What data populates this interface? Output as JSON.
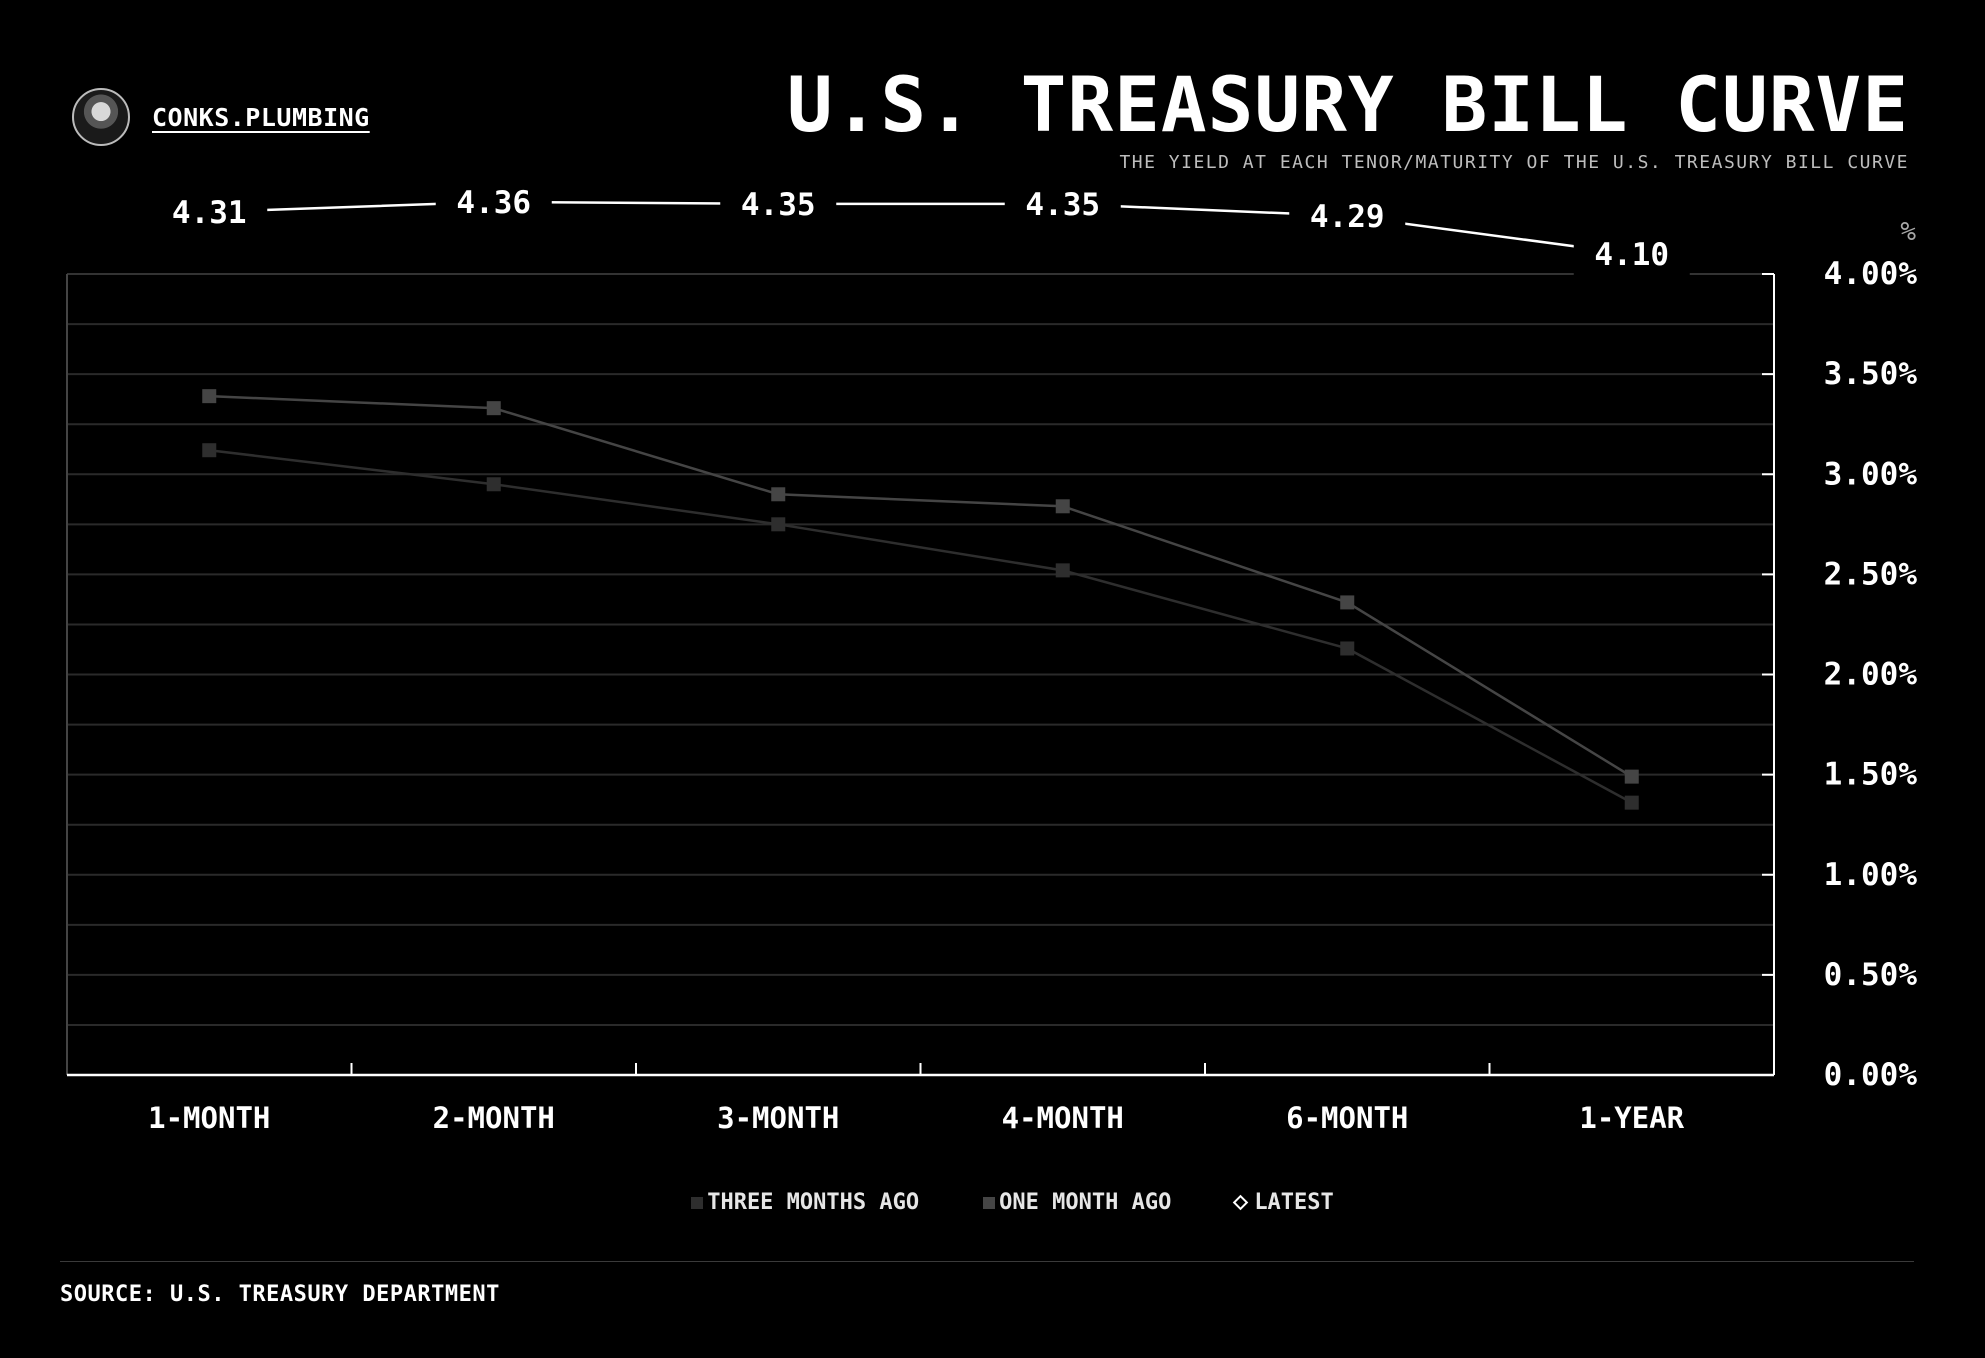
{
  "brand": {
    "name": "CONKS.PLUMBING"
  },
  "header": {
    "title": "U.S. TREASURY BILL CURVE",
    "subtitle": "THE YIELD AT EACH TENOR/MATURITY OF THE U.S. TREASURY BILL CURVE"
  },
  "footer": {
    "source": "SOURCE: U.S. TREASURY DEPARTMENT"
  },
  "colors": {
    "background": "#000000",
    "latest": "#ffffff",
    "three_months_ago": "#2e2e2e",
    "one_month_ago": "#454545",
    "grid": "#2a2a2a"
  },
  "chart_data": {
    "type": "line",
    "title": "U.S. TREASURY BILL CURVE",
    "subtitle": "THE YIELD AT EACH TENOR/MATURITY OF THE U.S. TREASURY BILL CURVE",
    "xlabel": "",
    "ylabel": "%",
    "y_axis_position": "right",
    "ylim": [
      0,
      4
    ],
    "yticks": [
      "0.00%",
      "0.50%",
      "1.00%",
      "1.50%",
      "2.00%",
      "2.50%",
      "3.00%",
      "3.50%",
      "4.00%"
    ],
    "grid": true,
    "legend_position": "bottom-center",
    "categories": [
      "1-MONTH",
      "2-MONTH",
      "3-MONTH",
      "4-MONTH",
      "6-MONTH",
      "1-YEAR"
    ],
    "series": [
      {
        "name": "THREE MONTHS AGO",
        "marker": "square",
        "values": [
          3.12,
          2.95,
          2.75,
          2.52,
          2.13,
          1.36
        ]
      },
      {
        "name": "ONE MONTH AGO",
        "marker": "square",
        "values": [
          3.39,
          3.33,
          2.9,
          2.84,
          2.36,
          1.49
        ]
      },
      {
        "name": "LATEST",
        "marker": "diamond",
        "values": [
          4.31,
          4.36,
          4.35,
          4.35,
          4.29,
          4.1
        ],
        "data_labels": [
          "4.31",
          "4.36",
          "4.35",
          "4.35",
          "4.29",
          "4.10"
        ]
      }
    ]
  }
}
